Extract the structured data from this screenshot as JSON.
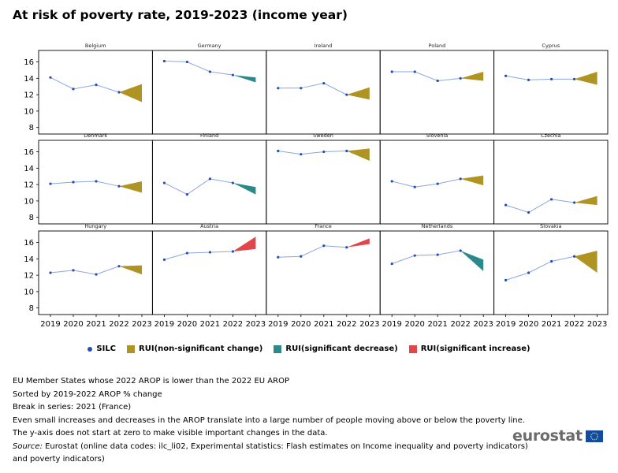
{
  "title": "At risk of poverty rate, 2019-2023  (income year)",
  "chart_data": {
    "type": "line",
    "title": "At risk of poverty rate, 2019-2023  (income year)",
    "x": [
      "2019",
      "2020",
      "2021",
      "2022",
      "2023"
    ],
    "y_ticks": [
      8,
      10,
      12,
      14,
      16
    ],
    "ylim": [
      7.2,
      17.4
    ],
    "panels": [
      {
        "country": "Belgium",
        "silc": [
          14.1,
          12.7,
          13.2,
          12.3
        ],
        "rui": {
          "low": 11.1,
          "high": 13.3,
          "type": "non-significant"
        }
      },
      {
        "country": "Germany",
        "silc": [
          16.1,
          16.0,
          14.8,
          14.4
        ],
        "rui": {
          "low": 13.5,
          "high": 14.1,
          "type": "decrease"
        }
      },
      {
        "country": "Ireland",
        "silc": [
          12.8,
          12.8,
          13.4,
          12.0
        ],
        "rui": {
          "low": 11.4,
          "high": 12.9,
          "type": "non-significant"
        }
      },
      {
        "country": "Poland",
        "silc": [
          14.8,
          14.8,
          13.7,
          14.0
        ],
        "rui": {
          "low": 13.7,
          "high": 14.8,
          "type": "non-significant"
        }
      },
      {
        "country": "Cyprus",
        "silc": [
          14.3,
          13.8,
          13.9,
          13.9
        ],
        "rui": {
          "low": 13.2,
          "high": 14.8,
          "type": "non-significant"
        }
      },
      {
        "country": "Denmark",
        "silc": [
          12.1,
          12.3,
          12.4,
          11.8
        ],
        "rui": {
          "low": 11.0,
          "high": 12.4,
          "type": "non-significant"
        }
      },
      {
        "country": "Finland",
        "silc": [
          12.2,
          10.8,
          12.7,
          12.2
        ],
        "rui": {
          "low": 10.8,
          "high": 11.7,
          "type": "decrease"
        }
      },
      {
        "country": "Sweden",
        "silc": [
          16.1,
          15.7,
          16.0,
          16.1
        ],
        "rui": {
          "low": 14.9,
          "high": 16.4,
          "type": "non-significant"
        }
      },
      {
        "country": "Slovenia",
        "silc": [
          12.4,
          11.7,
          12.1,
          12.7
        ],
        "rui": {
          "low": 11.9,
          "high": 13.1,
          "type": "non-significant"
        }
      },
      {
        "country": "Czechia",
        "silc": [
          9.5,
          8.6,
          10.2,
          9.8
        ],
        "rui": {
          "low": 9.5,
          "high": 10.6,
          "type": "non-significant"
        }
      },
      {
        "country": "Hungary",
        "silc": [
          12.3,
          12.6,
          12.1,
          13.1
        ],
        "rui": {
          "low": 12.1,
          "high": 13.2,
          "type": "non-significant"
        }
      },
      {
        "country": "Austria",
        "silc": [
          13.9,
          14.7,
          14.8,
          14.9
        ],
        "rui": {
          "low": 15.2,
          "high": 16.7,
          "type": "increase"
        }
      },
      {
        "country": "France",
        "silc": [
          14.2,
          14.3,
          15.6,
          15.4
        ],
        "rui": {
          "low": 15.8,
          "high": 16.5,
          "type": "increase"
        }
      },
      {
        "country": "Netherlands",
        "silc": [
          13.4,
          14.4,
          14.5,
          15.0
        ],
        "rui": {
          "low": 12.5,
          "high": 13.9,
          "type": "decrease"
        }
      },
      {
        "country": "Slovakia",
        "silc": [
          11.4,
          12.3,
          13.7,
          14.3
        ],
        "rui": {
          "low": 12.3,
          "high": 15.0,
          "type": "non-significant"
        }
      }
    ],
    "colors": {
      "silc": "#224EB8",
      "line": "#8DA6DC",
      "non_significant": "#B09423",
      "decrease": "#2A8A8A",
      "increase": "#E0464A"
    }
  },
  "legend": {
    "silc": "SILC",
    "non_significant": "RUI(non-significant change)",
    "decrease": "RUI(significant decrease)",
    "increase": "RUI(significant increase)"
  },
  "notes": [
    "EU Member States whose 2022 AROP is lower than the 2022 EU AROP",
    "Sorted by 2019-2022 AROP % change",
    "Break in series: 2021 (France)",
    "Even small increases and decreases in the AROP translate into a large number of people moving above or below the poverty line.",
    "The y-axis does not start at zero to make visible important changes in the data."
  ],
  "source": {
    "label": "Source:",
    "text": " Eurostat (online data codes: ilc_li02, Experimental statistics: Flash estimates on Income inequality and poverty indicators)",
    "text2": "and poverty indicators)"
  },
  "logo": "eurostat"
}
